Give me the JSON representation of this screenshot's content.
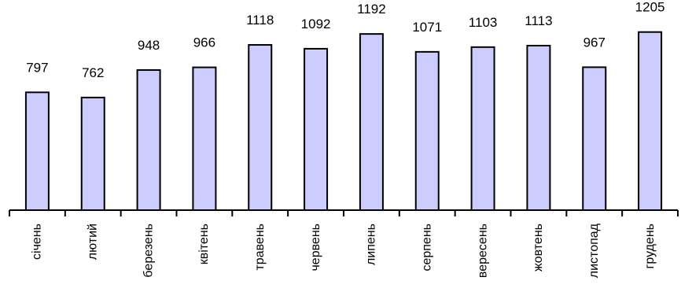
{
  "chart_data": {
    "type": "bar",
    "title": "",
    "xlabel": "",
    "ylabel": "",
    "categories": [
      "січень",
      "лютий",
      "березень",
      "квітень",
      "травень",
      "червень",
      "липень",
      "серпень",
      "вересень",
      "жовтень",
      "листопад",
      "грудень"
    ],
    "values": [
      797,
      762,
      948,
      966,
      1118,
      1092,
      1192,
      1071,
      1103,
      1113,
      967,
      1205
    ],
    "data_labels": [
      "797",
      "762",
      "948",
      "966",
      "1118",
      "1092",
      "1192",
      "1071",
      "1103",
      "1113",
      "967",
      "1205"
    ],
    "ylim": [
      0,
      1250
    ],
    "grid": false,
    "legend": "none",
    "colors": {
      "bar_fill": "#ccccff",
      "bar_stroke": "#000000",
      "axis": "#000000"
    }
  }
}
